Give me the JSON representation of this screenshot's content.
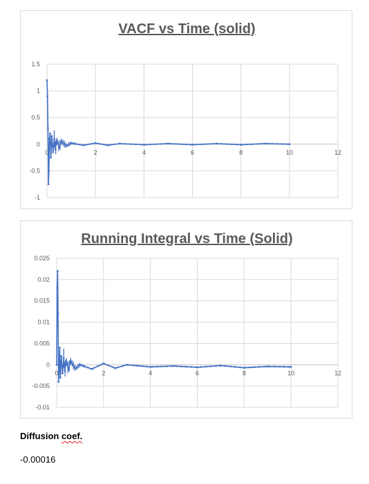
{
  "chart_data": [
    {
      "type": "line",
      "title": "VACF vs Time (solid)",
      "xlabel": "",
      "ylabel": "",
      "xlim": [
        0,
        12
      ],
      "ylim": [
        -1,
        1.5
      ],
      "x_ticks": [
        "0",
        "2",
        "4",
        "6",
        "8",
        "10",
        "12"
      ],
      "y_ticks": [
        "1.5",
        "1",
        "0.5",
        "0",
        "-0.5",
        "-1"
      ],
      "grid": true,
      "series": [
        {
          "x": [
            0,
            0.02,
            0.04,
            0.06,
            0.08,
            0.1,
            0.13,
            0.16,
            0.2,
            0.25,
            0.3,
            0.35,
            0.4,
            0.5,
            0.6,
            0.8,
            1.0,
            1.5,
            2.0,
            2.5,
            3.0,
            4.0,
            5.0,
            6.0,
            7.0,
            8.0,
            9.0,
            10.0
          ],
          "values": [
            1.2,
            0.9,
            0.3,
            -0.75,
            -0.5,
            0.1,
            0.2,
            -0.25,
            0.15,
            -0.15,
            0.1,
            -0.1,
            0.08,
            -0.06,
            0.05,
            -0.03,
            0.02,
            -0.02,
            0.02,
            -0.02,
            0.01,
            -0.01,
            0.01,
            -0.01,
            0.01,
            -0.01,
            0.01,
            0
          ]
        }
      ]
    },
    {
      "type": "line",
      "title": "Running Integral vs Time (Solid)",
      "xlabel": "",
      "ylabel": "",
      "xlim": [
        0,
        12
      ],
      "ylim": [
        -0.01,
        0.025
      ],
      "x_ticks": [
        "0",
        "2",
        "4",
        "6",
        "8",
        "10",
        "12"
      ],
      "y_ticks": [
        "0.025",
        "0.02",
        "0.015",
        "0.01",
        "0.005",
        "0",
        "-0.005",
        "-0.01"
      ],
      "grid": true,
      "series": [
        {
          "x": [
            0,
            0.02,
            0.04,
            0.06,
            0.08,
            0.1,
            0.13,
            0.16,
            0.2,
            0.25,
            0.3,
            0.35,
            0.4,
            0.5,
            0.6,
            0.8,
            1.0,
            1.5,
            2.0,
            2.5,
            3.0,
            4.0,
            5.0,
            6.0,
            7.0,
            8.0,
            9.0,
            10.0
          ],
          "values": [
            0,
            0.018,
            0.022,
            0.012,
            -0.004,
            -0.002,
            0.004,
            -0.003,
            0.002,
            -0.002,
            0.0015,
            -0.0015,
            0.001,
            -0.001,
            0.0008,
            -0.0009,
            0,
            -0.001,
            0.0003,
            -0.0008,
            0,
            -0.0005,
            -0.0003,
            -0.0006,
            -0.0002,
            -0.0007,
            -0.0004,
            -0.0005
          ]
        }
      ]
    }
  ],
  "diffusion": {
    "label_plain": "Diffusion ",
    "label_marked": "coef.",
    "value": "-0.00016"
  }
}
